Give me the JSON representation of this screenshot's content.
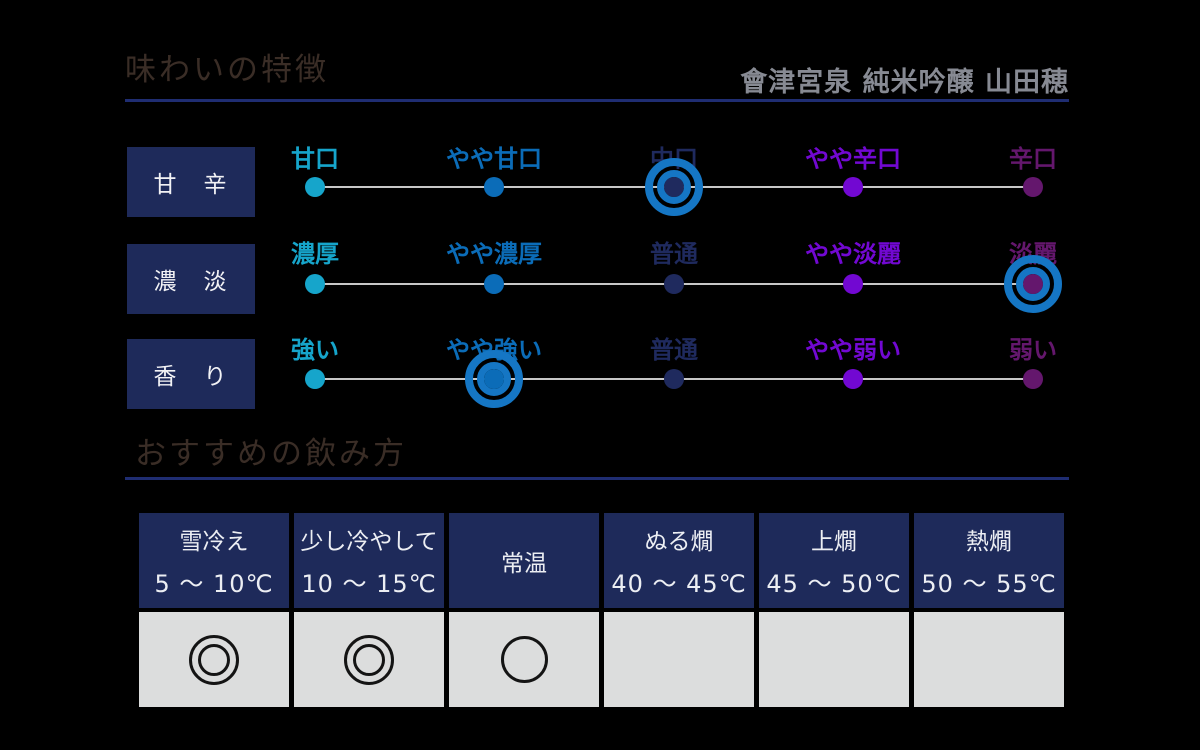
{
  "title": "味わいの特徴",
  "product_name": "會津宮泉 純米吟醸 山田穂",
  "section_drinking": {
    "title": "おすすめの飲み方"
  },
  "scales": [
    {
      "row_label": "甘　辛",
      "selected_index": 2,
      "options": [
        {
          "label": "甘口",
          "color": "#16a5cb"
        },
        {
          "label": "やや甘口",
          "color": "#0b6cb8"
        },
        {
          "label": "中口",
          "color": "#1f2a5e"
        },
        {
          "label": "やや辛口",
          "color": "#7208d2"
        },
        {
          "label": "辛口",
          "color": "#64176d"
        }
      ]
    },
    {
      "row_label": "濃　淡",
      "selected_index": 4,
      "options": [
        {
          "label": "濃厚",
          "color": "#16a5cb"
        },
        {
          "label": "やや濃厚",
          "color": "#0b6cb8"
        },
        {
          "label": "普通",
          "color": "#1f2a5e"
        },
        {
          "label": "やや淡麗",
          "color": "#7208d2"
        },
        {
          "label": "淡麗",
          "color": "#64176d"
        }
      ]
    },
    {
      "row_label": "香　り",
      "selected_index": 1,
      "options": [
        {
          "label": "強い",
          "color": "#16a5cb"
        },
        {
          "label": "やや強い",
          "color": "#0b6cb8"
        },
        {
          "label": "普通",
          "color": "#1f2a5e"
        },
        {
          "label": "やや弱い",
          "color": "#7208d2"
        },
        {
          "label": "弱い",
          "color": "#64176d"
        }
      ]
    }
  ],
  "serving_table": {
    "columns": [
      {
        "name": "雪冷え",
        "temp": "5 ～ 10℃",
        "mark": "◎"
      },
      {
        "name": "少し冷やして",
        "temp": "10 ～ 15℃",
        "mark": "◎"
      },
      {
        "name": "常温",
        "temp": "",
        "mark": "○"
      },
      {
        "name": "ぬる燗",
        "temp": "40 ～ 45℃",
        "mark": ""
      },
      {
        "name": "上燗",
        "temp": "45 ～ 50℃",
        "mark": ""
      },
      {
        "name": "熱燗",
        "temp": "50 ～ 55℃",
        "mark": ""
      }
    ]
  },
  "colors": {
    "background": "#000000",
    "navy": "#1e2a5a",
    "underline": "#1f2d72",
    "scale_line": "#c7c7c7",
    "marker_ring": "#1576c4",
    "title_text": "#3a2d26",
    "product_text": "#878a93",
    "table_body_bg": "#dcdddd",
    "mark_stroke": "#141414"
  },
  "chart_data": [
    {
      "type": "table",
      "title": "味わいの特徴",
      "subtitle": "會津宮泉 純米吟醸 山田穂",
      "rows": [
        {
          "axis": "甘辛",
          "levels": [
            "甘口",
            "やや甘口",
            "中口",
            "やや辛口",
            "辛口"
          ],
          "selected": "中口"
        },
        {
          "axis": "濃淡",
          "levels": [
            "濃厚",
            "やや濃厚",
            "普通",
            "やや淡麗",
            "淡麗"
          ],
          "selected": "淡麗"
        },
        {
          "axis": "香り",
          "levels": [
            "強い",
            "やや強い",
            "普通",
            "やや弱い",
            "弱い"
          ],
          "selected": "やや強い"
        }
      ]
    },
    {
      "type": "table",
      "title": "おすすめの飲み方",
      "categories": [
        "雪冷え 5～10℃",
        "少し冷やして 10～15℃",
        "常温",
        "ぬる燗 40～45℃",
        "上燗 45～50℃",
        "熱燗 50～55℃"
      ],
      "values": [
        "◎",
        "◎",
        "○",
        "",
        "",
        ""
      ]
    }
  ]
}
